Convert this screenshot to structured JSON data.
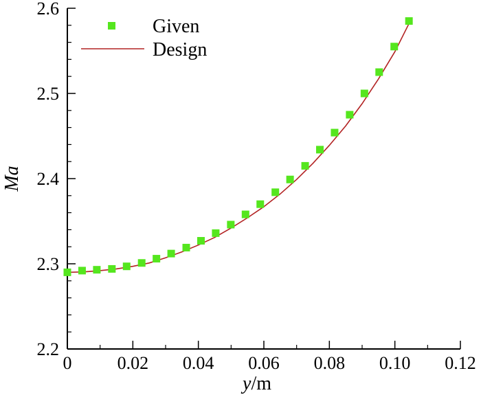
{
  "chart_data": {
    "type": "scatter",
    "title": "",
    "xlabel": {
      "italic": "y",
      "rest": "/m"
    },
    "ylabel": "Ma",
    "xlim": [
      0,
      0.12
    ],
    "ylim": [
      2.2,
      2.6
    ],
    "x_ticks": [
      "0",
      "0.02",
      "0.04",
      "0.06",
      "0.08",
      "0.10",
      "0.12"
    ],
    "y_ticks": [
      "2.2",
      "2.3",
      "2.4",
      "2.5",
      "2.6"
    ],
    "grid": false,
    "legend_position": "top-left",
    "series": [
      {
        "name": "Given",
        "kind": "markers",
        "marker": "square",
        "color": "#55e61e",
        "x": [
          0.0,
          0.0045,
          0.009,
          0.0136,
          0.0181,
          0.0227,
          0.0272,
          0.0317,
          0.0363,
          0.0408,
          0.0453,
          0.0499,
          0.0544,
          0.0589,
          0.0635,
          0.068,
          0.0726,
          0.0771,
          0.0816,
          0.0862,
          0.0907,
          0.0952,
          0.0998,
          0.1043
        ],
        "y": [
          2.29,
          2.292,
          2.293,
          2.294,
          2.297,
          2.301,
          2.306,
          2.312,
          2.319,
          2.327,
          2.336,
          2.346,
          2.358,
          2.37,
          2.384,
          2.399,
          2.415,
          2.434,
          2.454,
          2.475,
          2.5,
          2.525,
          2.555,
          2.585
        ]
      },
      {
        "name": "Design",
        "kind": "line",
        "color": "#b22222",
        "x": [
          0.0,
          0.005,
          0.01,
          0.015,
          0.02,
          0.025,
          0.03,
          0.035,
          0.04,
          0.045,
          0.05,
          0.055,
          0.06,
          0.065,
          0.07,
          0.075,
          0.08,
          0.085,
          0.09,
          0.095,
          0.1,
          0.1043
        ],
        "y": [
          2.29,
          2.2905,
          2.292,
          2.294,
          2.297,
          2.301,
          2.307,
          2.314,
          2.322,
          2.331,
          2.342,
          2.354,
          2.367,
          2.382,
          2.399,
          2.418,
          2.439,
          2.462,
          2.488,
          2.517,
          2.549,
          2.582
        ]
      }
    ]
  }
}
